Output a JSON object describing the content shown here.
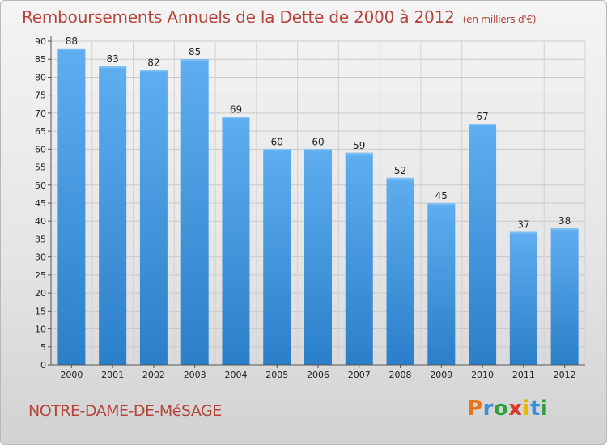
{
  "header": {
    "title": "Remboursements Annuels de la Dette de 2000 à 2012",
    "unit": "(en milliers d'€)"
  },
  "footer": {
    "commune": "NOTRE-DAME-DE-MéSAGE",
    "logo": {
      "letters": [
        "P",
        "r",
        "o",
        "x",
        "i",
        "t",
        "i"
      ],
      "colors": [
        "#e8731a",
        "#3a8fd9",
        "#2e9e3e",
        "#d63a2a",
        "#e6b800",
        "#3a8fd9",
        "#2e9e3e"
      ]
    }
  },
  "chart_data": {
    "type": "bar",
    "title": "Remboursements Annuels de la Dette de 2000 à 2012",
    "categories": [
      "2000",
      "2001",
      "2002",
      "2003",
      "2004",
      "2005",
      "2006",
      "2007",
      "2008",
      "2009",
      "2010",
      "2011",
      "2012"
    ],
    "values": [
      88,
      83,
      82,
      85,
      69,
      60,
      60,
      59,
      52,
      45,
      67,
      37,
      38
    ],
    "ylim": [
      0,
      90
    ],
    "yticks": [
      0,
      5,
      10,
      15,
      20,
      25,
      30,
      35,
      40,
      45,
      50,
      55,
      60,
      65,
      70,
      75,
      80,
      85,
      90
    ],
    "grid": true,
    "bar_color": "#3d97df"
  }
}
